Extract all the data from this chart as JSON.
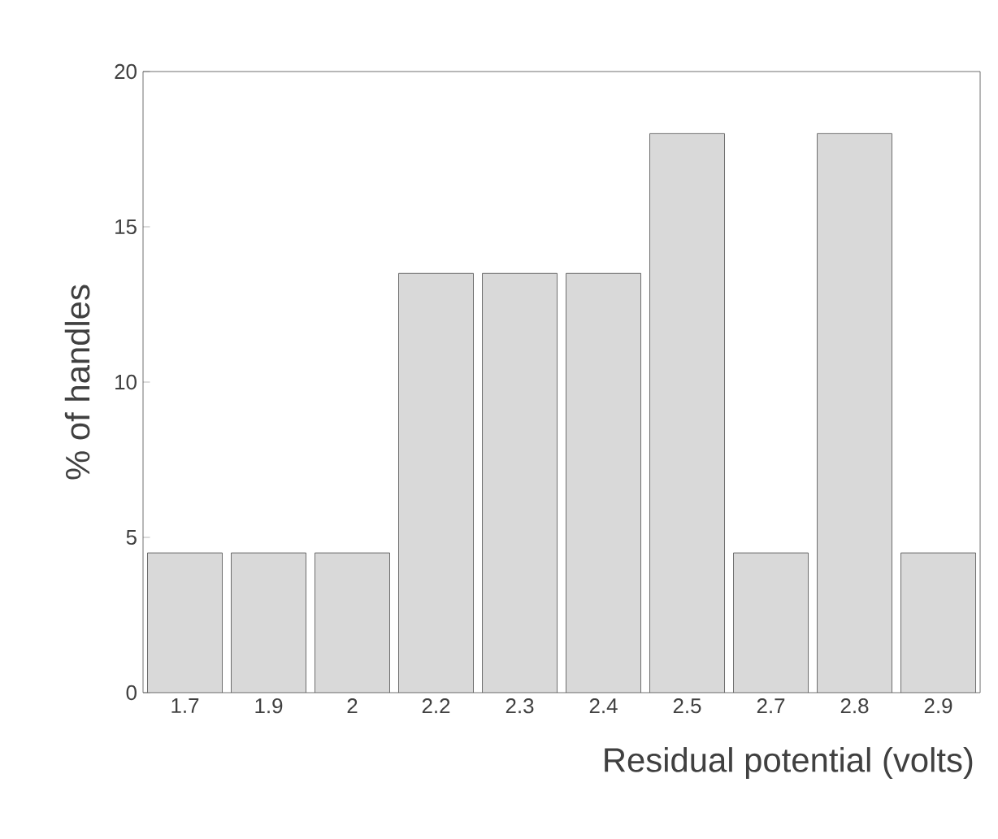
{
  "chart_data": {
    "type": "bar",
    "xlabel": "Residual potential (volts)",
    "ylabel": "% of handles",
    "categories": [
      "1.7",
      "1.9",
      "2",
      "2.2",
      "2.3",
      "2.4",
      "2.5",
      "2.7",
      "2.8",
      "2.9"
    ],
    "values": [
      4.5,
      4.5,
      4.5,
      13.5,
      13.5,
      13.5,
      18,
      4.5,
      18,
      4.5
    ],
    "color": "#d9d9d9",
    "ylim": [
      0,
      20
    ],
    "yticks": [
      0,
      5,
      10,
      15,
      20
    ],
    "grid": false
  }
}
